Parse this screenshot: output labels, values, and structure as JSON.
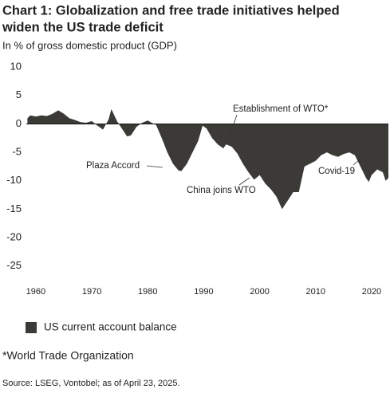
{
  "chart_data": {
    "type": "area",
    "title": "Chart 1: Globalization and free trade initiatives helped",
    "title_line2": "widen the US trade deficit",
    "subtitle": "In % of gross domestic product (GDP)",
    "x": [
      1958.5,
      1959,
      1960,
      1961,
      1962,
      1963,
      1964,
      1965,
      1966,
      1967,
      1968,
      1969,
      1970,
      1971,
      1972,
      1973,
      1973.5,
      1974.5,
      1975.5,
      1976.3,
      1977,
      1978,
      1979,
      1980,
      1980.7,
      1981.5,
      1982.5,
      1983.5,
      1984.5,
      1985.5,
      1986,
      1987,
      1988,
      1989,
      1989.8,
      1990.5,
      1991.5,
      1992.5,
      1993.5,
      1994,
      1995,
      1996,
      1997,
      1998,
      1999,
      2000,
      2001,
      2002,
      2003,
      2004,
      2005,
      2006,
      2007,
      2008,
      2009,
      2010,
      2011,
      2012,
      2013,
      2014,
      2015,
      2016,
      2017,
      2018,
      2019,
      2019.5,
      2020,
      2021,
      2022,
      2022.5,
      2023
    ],
    "series": [
      {
        "name": "US current account balance",
        "color": "#3b3a36",
        "values": [
          1.0,
          1.5,
          1.3,
          1.5,
          1.4,
          1.8,
          2.4,
          1.8,
          1.0,
          0.7,
          0.3,
          0.2,
          0.5,
          -0.3,
          -1.0,
          0.8,
          2.6,
          0.5,
          -1.0,
          -2.2,
          -2.0,
          -0.5,
          0.2,
          0.6,
          0.2,
          -0.2,
          -2.5,
          -5.0,
          -7.0,
          -8.2,
          -8.3,
          -7.0,
          -5.0,
          -3.0,
          -0.3,
          -0.8,
          -2.5,
          -3.6,
          -4.3,
          -3.6,
          -4.0,
          -5.2,
          -7.0,
          -8.5,
          -9.8,
          -9.0,
          -10.5,
          -11.5,
          -12.8,
          -15.0,
          -13.5,
          -12.0,
          -12.0,
          -7.5,
          -7.0,
          -6.5,
          -5.5,
          -5.0,
          -5.5,
          -5.8,
          -5.3,
          -5.0,
          -5.5,
          -7.5,
          -9.5,
          -10.2,
          -9.0,
          -8.0,
          -8.5,
          -10.0,
          -9.5
        ]
      }
    ],
    "xlim": [
      1958.3,
      2023
    ],
    "xticks": [
      1960,
      1970,
      1980,
      1990,
      2000,
      2010,
      2020
    ],
    "ylim": [
      -27,
      11
    ],
    "yticks": [
      10,
      5,
      0,
      -5,
      -10,
      -15,
      -20,
      -25
    ],
    "grid": false,
    "annotations": [
      "Establishment of WTO*",
      "Plaza Accord",
      "China joins WTO",
      "Covid-19"
    ],
    "footnote": "*World Trade Organization",
    "source": "Source: LSEG, Vontobel; as of April 23, 2025."
  }
}
